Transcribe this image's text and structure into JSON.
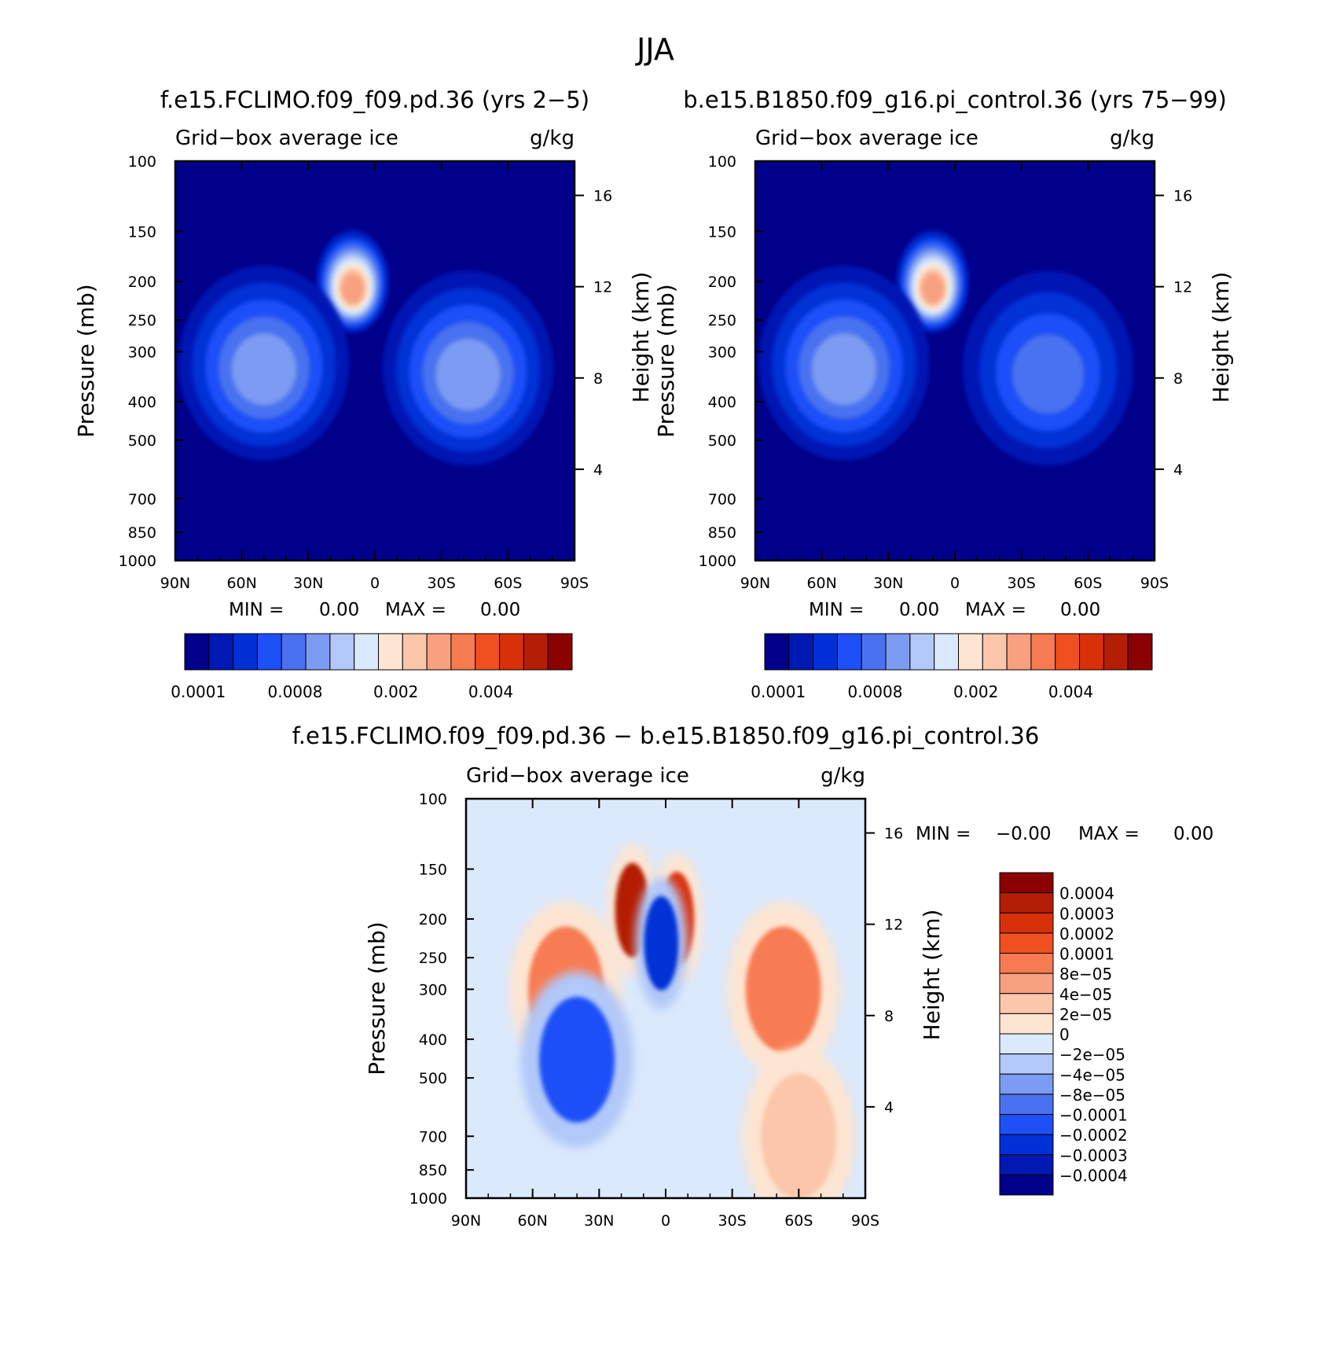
{
  "figure": {
    "title": "JJA"
  },
  "chart_data": [
    {
      "type": "heatmap",
      "panel": "top-left",
      "case_title": "f.e15.FCLIMO.f09_f09.pd.36 (yrs 2−5)",
      "left_string": "Grid−box average ice",
      "right_string": "g/kg",
      "ylabel": "Pressure (mb)",
      "ylabel_right": "Height (km)",
      "y_scale": "log",
      "ylim": [
        1000,
        100
      ],
      "y_ticks": [
        100,
        150,
        200,
        250,
        300,
        400,
        500,
        700,
        850,
        1000
      ],
      "y_tick_labels": [
        "100",
        "150",
        "200",
        "250",
        "300",
        "400",
        "500",
        "700",
        "850",
        "1000"
      ],
      "height_ticks_km": [
        "16",
        "12",
        "8",
        "4"
      ],
      "x_ticks": [
        "90N",
        "60N",
        "30N",
        "0",
        "30S",
        "60S",
        "90S"
      ],
      "min_label": "MIN =",
      "min_value": "0.00",
      "max_label": "MAX =",
      "max_value": "0.00",
      "colorbar": {
        "colors": [
          "#00008a",
          "#0019b3",
          "#0031d6",
          "#1f4ff7",
          "#4a72f0",
          "#7c9bf2",
          "#b1c8f8",
          "#dbe9fc",
          "#fde5d2",
          "#fbc6aa",
          "#f8a07f",
          "#f77b52",
          "#f0501f",
          "#d8310a",
          "#b41e06",
          "#8b0000"
        ],
        "labels": [
          "0.0001",
          "0.0008",
          "0.002",
          "0.004"
        ]
      },
      "features": [
        {
          "desc": "tropical upper-troposphere ice maximum",
          "lat": 10,
          "p": 200,
          "value_class": 10
        },
        {
          "desc": "NH mid-latitude ice band",
          "lat": 50,
          "p": 320,
          "value_class": 5
        },
        {
          "desc": "SH mid-latitude ice band",
          "lat": -42,
          "p": 330,
          "value_class": 5
        }
      ]
    },
    {
      "type": "heatmap",
      "panel": "top-right",
      "case_title": "b.e15.B1850.f09_g16.pi_control.36 (yrs 75−99)",
      "left_string": "Grid−box average ice",
      "right_string": "g/kg",
      "ylabel": "Pressure (mb)",
      "ylabel_right": "Height (km)",
      "y_scale": "log",
      "ylim": [
        1000,
        100
      ],
      "y_ticks": [
        100,
        150,
        200,
        250,
        300,
        400,
        500,
        700,
        850,
        1000
      ],
      "y_tick_labels": [
        "100",
        "150",
        "200",
        "250",
        "300",
        "400",
        "500",
        "700",
        "850",
        "1000"
      ],
      "height_ticks_km": [
        "16",
        "12",
        "8",
        "4"
      ],
      "x_ticks": [
        "90N",
        "60N",
        "30N",
        "0",
        "30S",
        "60S",
        "90S"
      ],
      "min_label": "MIN =",
      "min_value": "0.00",
      "max_label": "MAX =",
      "max_value": "0.00",
      "colorbar": {
        "colors": [
          "#00008a",
          "#0019b3",
          "#0031d6",
          "#1f4ff7",
          "#4a72f0",
          "#7c9bf2",
          "#b1c8f8",
          "#dbe9fc",
          "#fde5d2",
          "#fbc6aa",
          "#f8a07f",
          "#f77b52",
          "#f0501f",
          "#d8310a",
          "#b41e06",
          "#8b0000"
        ],
        "labels": [
          "0.0001",
          "0.0008",
          "0.002",
          "0.004"
        ]
      },
      "features": [
        {
          "desc": "tropical upper-troposphere ice maximum",
          "lat": 10,
          "p": 200,
          "value_class": 10
        },
        {
          "desc": "NH mid-latitude ice band",
          "lat": 50,
          "p": 320,
          "value_class": 5
        },
        {
          "desc": "SH mid-latitude ice band",
          "lat": -42,
          "p": 330,
          "value_class": 4
        }
      ]
    },
    {
      "type": "heatmap",
      "panel": "bottom-difference",
      "case_title": "f.e15.FCLIMO.f09_f09.pd.36 − b.e15.B1850.f09_g16.pi_control.36",
      "left_string": "Grid−box average ice",
      "right_string": "g/kg",
      "ylabel": "Pressure (mb)",
      "ylabel_right": "Height (km)",
      "y_scale": "log",
      "ylim": [
        1000,
        100
      ],
      "y_ticks": [
        100,
        150,
        200,
        250,
        300,
        400,
        500,
        700,
        850,
        1000
      ],
      "y_tick_labels": [
        "100",
        "150",
        "200",
        "250",
        "300",
        "400",
        "500",
        "700",
        "850",
        "1000"
      ],
      "height_ticks_km": [
        "16",
        "12",
        "8",
        "4"
      ],
      "x_ticks": [
        "90N",
        "60N",
        "30N",
        "0",
        "30S",
        "60S",
        "90S"
      ],
      "min_label": "MIN =",
      "min_value": "−0.00",
      "max_label": "MAX =",
      "max_value": "0.00",
      "colorbar": {
        "orientation": "vertical",
        "colors": [
          "#00008a",
          "#0019b3",
          "#0031d6",
          "#1f4ff7",
          "#4a72f0",
          "#7c9bf2",
          "#b1c8f8",
          "#dbe9fc",
          "#fde5d2",
          "#fbc6aa",
          "#f8a07f",
          "#f77b52",
          "#f0501f",
          "#d8310a",
          "#b41e06",
          "#8b0000"
        ],
        "labels": [
          "−0.0004",
          "−0.0003",
          "−0.0002",
          "−0.0001",
          "−8e−05",
          "−4e−05",
          "−2e−05",
          "0",
          "2e−05",
          "4e−05",
          "8e−05",
          "0.0001",
          "0.0002",
          "0.0003",
          "0.0004"
        ]
      },
      "features": [
        {
          "desc": "positive difference NH upper troposphere",
          "lat": 45,
          "p": 300,
          "value_class": 11
        },
        {
          "desc": "strong positive difference north of equator",
          "lat": 15,
          "p": 190,
          "value_class": 14
        },
        {
          "desc": "strong positive difference south of equator",
          "lat": -5,
          "p": 200,
          "value_class": 13
        },
        {
          "desc": "negative difference band at equator",
          "lat": 2,
          "p": 230,
          "value_class": 2
        },
        {
          "desc": "negative difference NH mid troposphere",
          "lat": 40,
          "p": 450,
          "value_class": 3
        },
        {
          "desc": "positive difference SH mid latitudes",
          "lat": -53,
          "p": 300,
          "value_class": 11
        },
        {
          "desc": "weak positive difference SH lower troposphere",
          "lat": -60,
          "p": 700,
          "value_class": 9
        }
      ]
    }
  ]
}
